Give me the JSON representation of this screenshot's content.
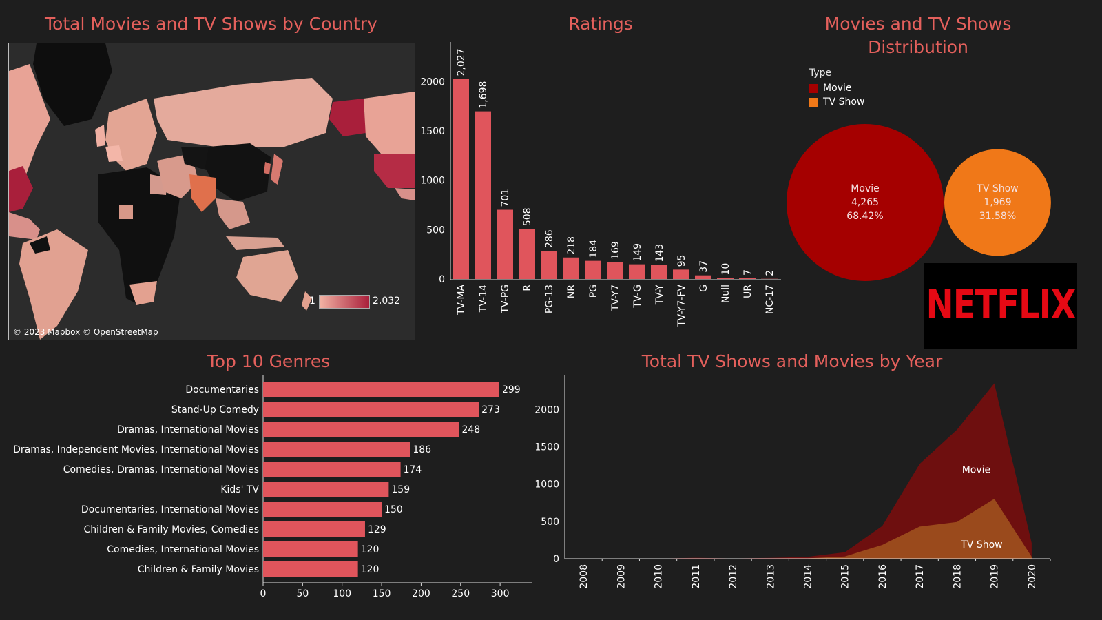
{
  "titles": {
    "map": "Total Movies and TV Shows by Country",
    "ratings": "Ratings",
    "distribution": "Movies and TV Shows Distribution",
    "genres": "Top 10 Genres",
    "year": "Total TV Shows and Movies by Year"
  },
  "map": {
    "credit": "© 2023 Mapbox © OpenStreetMap",
    "legend_min": "1",
    "legend_max": "2,032",
    "color_low": "#f2b3a4",
    "color_high": "#a91f3b"
  },
  "distribution_legend": {
    "title": "Type",
    "items": [
      {
        "label": "Movie",
        "color": "#a50000"
      },
      {
        "label": "TV Show",
        "color": "#f07818"
      }
    ]
  },
  "logo": {
    "text": "NETFLIX",
    "color": "#e50914"
  },
  "chart_data": [
    {
      "type": "bar",
      "title": "Ratings",
      "orientation": "vertical",
      "categories": [
        "TV-MA",
        "TV-14",
        "TV-PG",
        "R",
        "PG-13",
        "NR",
        "PG",
        "TV-Y7",
        "TV-G",
        "TV-Y",
        "TV-Y7-FV",
        "G",
        "Null",
        "UR",
        "NC-17"
      ],
      "values": [
        2027,
        1698,
        701,
        508,
        286,
        218,
        184,
        169,
        149,
        143,
        95,
        37,
        10,
        7,
        2
      ],
      "value_labels": [
        "2,027",
        "1,698",
        "701",
        "508",
        "286",
        "218",
        "184",
        "169",
        "149",
        "143",
        "95",
        "37",
        "10",
        "7",
        "2"
      ],
      "ylim": [
        0,
        2400
      ],
      "yticks": [
        0,
        500,
        1000,
        1500,
        2000
      ],
      "color": "#e0555c"
    },
    {
      "type": "pie",
      "title": "Movies and TV Shows Distribution",
      "series": [
        {
          "name": "Movie",
          "value": 4265,
          "value_label": "4,265",
          "percent": "68.42%",
          "color": "#a50000"
        },
        {
          "name": "TV Show",
          "value": 1969,
          "value_label": "1,969",
          "percent": "31.58%",
          "color": "#f07818"
        }
      ]
    },
    {
      "type": "bar",
      "title": "Top 10 Genres",
      "orientation": "horizontal",
      "categories": [
        "Documentaries",
        "Stand-Up Comedy",
        "Dramas, International Movies",
        "Dramas, Independent Movies, International Movies",
        "Comedies, Dramas, International Movies",
        "Kids' TV",
        "Documentaries, International Movies",
        "Children & Family Movies, Comedies",
        "Comedies, International Movies",
        "Children & Family Movies"
      ],
      "values": [
        299,
        273,
        248,
        186,
        174,
        159,
        150,
        129,
        120,
        120
      ],
      "xlim": [
        0,
        340
      ],
      "xticks": [
        0,
        50,
        100,
        150,
        200,
        250,
        300
      ],
      "color": "#e0555c"
    },
    {
      "type": "area",
      "title": "Total TV Shows and Movies by Year",
      "x": [
        "2008",
        "2009",
        "2010",
        "2011",
        "2012",
        "2013",
        "2014",
        "2015",
        "2016",
        "2017",
        "2018",
        "2019",
        "2020"
      ],
      "ylim": [
        0,
        2400
      ],
      "yticks": [
        0,
        500,
        1000,
        1500,
        2000
      ],
      "series": [
        {
          "name": "Movie",
          "values": [
            1,
            2,
            1,
            13,
            3,
            6,
            19,
            56,
            253,
            839,
            1237,
            1546,
            184
          ],
          "color": "#6e0f0f"
        },
        {
          "name": "TV Show",
          "values": [
            1,
            0,
            0,
            0,
            0,
            5,
            6,
            30,
            185,
            430,
            492,
            803,
            25
          ],
          "color": "#9a4a1c"
        }
      ]
    }
  ]
}
